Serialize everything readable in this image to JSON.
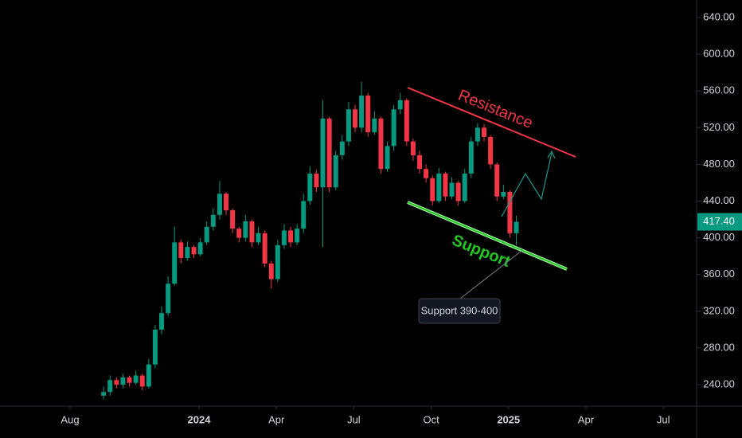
{
  "chart_data": {
    "type": "candlestick",
    "x": [
      1.3,
      1.55,
      1.8,
      2.05,
      2.3,
      2.55,
      2.8,
      3.05,
      3.3,
      3.55,
      3.8,
      4.05,
      4.3,
      4.55,
      4.8,
      5.05,
      5.3,
      5.55,
      5.8,
      6.05,
      6.3,
      6.55,
      6.8,
      7.05,
      7.3,
      7.55,
      7.8,
      8.05,
      8.3,
      8.55,
      8.8,
      9.05,
      9.3,
      9.55,
      9.8,
      10.05,
      10.3,
      10.55,
      10.8,
      11.05,
      11.3,
      11.55,
      11.8,
      12.05,
      12.3,
      12.55,
      12.8,
      13.05,
      13.3,
      13.55,
      13.8,
      14.05,
      14.3,
      14.55,
      14.8,
      15.05,
      15.3,
      15.55,
      15.8,
      16.05,
      16.3,
      16.55,
      16.8,
      17.05,
      17.3
    ],
    "open": [
      228,
      232,
      245,
      240,
      248,
      242,
      250,
      238,
      262,
      300,
      318,
      350,
      395,
      378,
      390,
      382,
      395,
      412,
      425,
      448,
      430,
      410,
      400,
      418,
      395,
      405,
      372,
      355,
      392,
      408,
      395,
      410,
      440,
      470,
      455,
      530,
      455,
      490,
      505,
      540,
      520,
      555,
      515,
      530,
      475,
      500,
      540,
      550,
      505,
      490,
      475,
      465,
      440,
      470,
      445,
      460,
      440,
      470,
      505,
      520,
      510,
      480,
      445,
      450,
      405
    ],
    "high": [
      238,
      250,
      248,
      252,
      250,
      255,
      252,
      268,
      305,
      325,
      358,
      412,
      398,
      396,
      392,
      400,
      418,
      432,
      462,
      450,
      432,
      412,
      425,
      420,
      412,
      408,
      375,
      398,
      415,
      412,
      415,
      448,
      478,
      474,
      550,
      532,
      495,
      512,
      548,
      545,
      570,
      558,
      538,
      532,
      505,
      545,
      558,
      552,
      508,
      495,
      480,
      468,
      476,
      472,
      466,
      462,
      475,
      510,
      525,
      524,
      512,
      482,
      458,
      452,
      424
    ],
    "low": [
      224,
      228,
      236,
      236,
      238,
      240,
      234,
      236,
      258,
      295,
      315,
      348,
      372,
      375,
      378,
      380,
      392,
      408,
      420,
      425,
      405,
      395,
      396,
      390,
      392,
      368,
      345,
      352,
      388,
      390,
      392,
      405,
      436,
      450,
      390,
      450,
      452,
      485,
      500,
      515,
      515,
      510,
      512,
      470,
      472,
      495,
      535,
      500,
      484,
      470,
      460,
      435,
      438,
      440,
      442,
      435,
      438,
      465,
      500,
      505,
      475,
      440,
      442,
      400,
      392
    ],
    "close": [
      232,
      245,
      240,
      248,
      242,
      250,
      238,
      262,
      300,
      318,
      350,
      395,
      378,
      390,
      382,
      395,
      412,
      425,
      448,
      430,
      410,
      400,
      418,
      395,
      405,
      372,
      355,
      392,
      408,
      395,
      410,
      440,
      470,
      455,
      530,
      455,
      490,
      505,
      540,
      520,
      555,
      515,
      530,
      475,
      500,
      540,
      550,
      505,
      490,
      475,
      465,
      440,
      470,
      445,
      460,
      440,
      470,
      505,
      520,
      510,
      480,
      445,
      450,
      405,
      417.4
    ],
    "up_color": "#089981",
    "down_color": "#f23645",
    "xlim": [
      -2.716,
      24.29
    ],
    "xticks": [
      {
        "value": 0,
        "label": "Aug"
      },
      {
        "value": 5,
        "label": "2024"
      },
      {
        "value": 8,
        "label": "Apr"
      },
      {
        "value": 11,
        "label": "Jul"
      },
      {
        "value": 14,
        "label": "Oct"
      },
      {
        "value": 17,
        "label": "2025"
      },
      {
        "value": 20,
        "label": "Apr"
      },
      {
        "value": 23,
        "label": "Jul"
      }
    ],
    "ylim": [
      216.6,
      659.1
    ],
    "yticks": [
      {
        "value": 240,
        "label": "240.00"
      },
      {
        "value": 280,
        "label": "280.00"
      },
      {
        "value": 320,
        "label": "320.00"
      },
      {
        "value": 360,
        "label": "360.00"
      },
      {
        "value": 400,
        "label": "400.00"
      },
      {
        "value": 440,
        "label": "440.00"
      },
      {
        "value": 480,
        "label": "480.00"
      },
      {
        "value": 520,
        "label": "520.00"
      },
      {
        "value": 560,
        "label": "560.00"
      },
      {
        "value": 600,
        "label": "600.00"
      },
      {
        "value": 640,
        "label": "640.00"
      }
    ],
    "last_price": 417.4,
    "last_price_label": "417.40",
    "annotations": [
      "Resistance",
      "Support",
      "Support 390-400"
    ]
  }
}
